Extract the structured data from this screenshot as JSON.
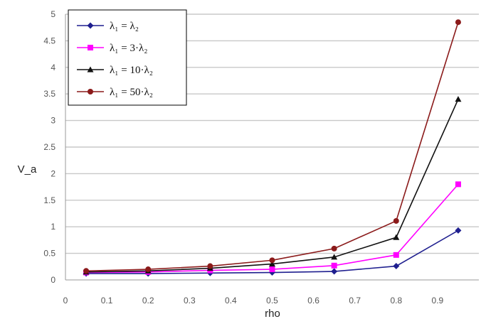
{
  "chart_data": {
    "type": "line",
    "title": "",
    "xlabel": "rho",
    "ylabel": "V_a",
    "xlim": [
      0,
      1
    ],
    "ylim": [
      0,
      5
    ],
    "x_ticks": [
      "0",
      "0.1",
      "0.2",
      "0.3",
      "0.4",
      "0.5",
      "0.6",
      "0.7",
      "0.8",
      "0.9"
    ],
    "y_ticks": [
      "0",
      "0.5",
      "1",
      "1.5",
      "2",
      "2.5",
      "3",
      "3.5",
      "4",
      "4.5",
      "5"
    ],
    "x": [
      0.05,
      0.2,
      0.35,
      0.5,
      0.65,
      0.8,
      0.95
    ],
    "grid": "horizontal",
    "legend_position": "top-left",
    "series": [
      {
        "name": "λ₁ = λ₂",
        "color": "#1f1f8f",
        "marker": "diamond",
        "values": [
          0.12,
          0.12,
          0.13,
          0.14,
          0.16,
          0.26,
          0.93
        ]
      },
      {
        "name": "λ₁ = 3·λ₂",
        "color": "#ff00ff",
        "marker": "square",
        "values": [
          0.14,
          0.15,
          0.18,
          0.2,
          0.27,
          0.47,
          1.8
        ]
      },
      {
        "name": "λ₁ = 10·λ₂",
        "color": "#111111",
        "marker": "triangle",
        "values": [
          0.15,
          0.17,
          0.22,
          0.3,
          0.43,
          0.8,
          3.4
        ]
      },
      {
        "name": "λ₁ = 50·λ₂",
        "color": "#8b1a1a",
        "marker": "circle",
        "values": [
          0.17,
          0.2,
          0.26,
          0.37,
          0.59,
          1.11,
          4.85
        ]
      }
    ]
  }
}
